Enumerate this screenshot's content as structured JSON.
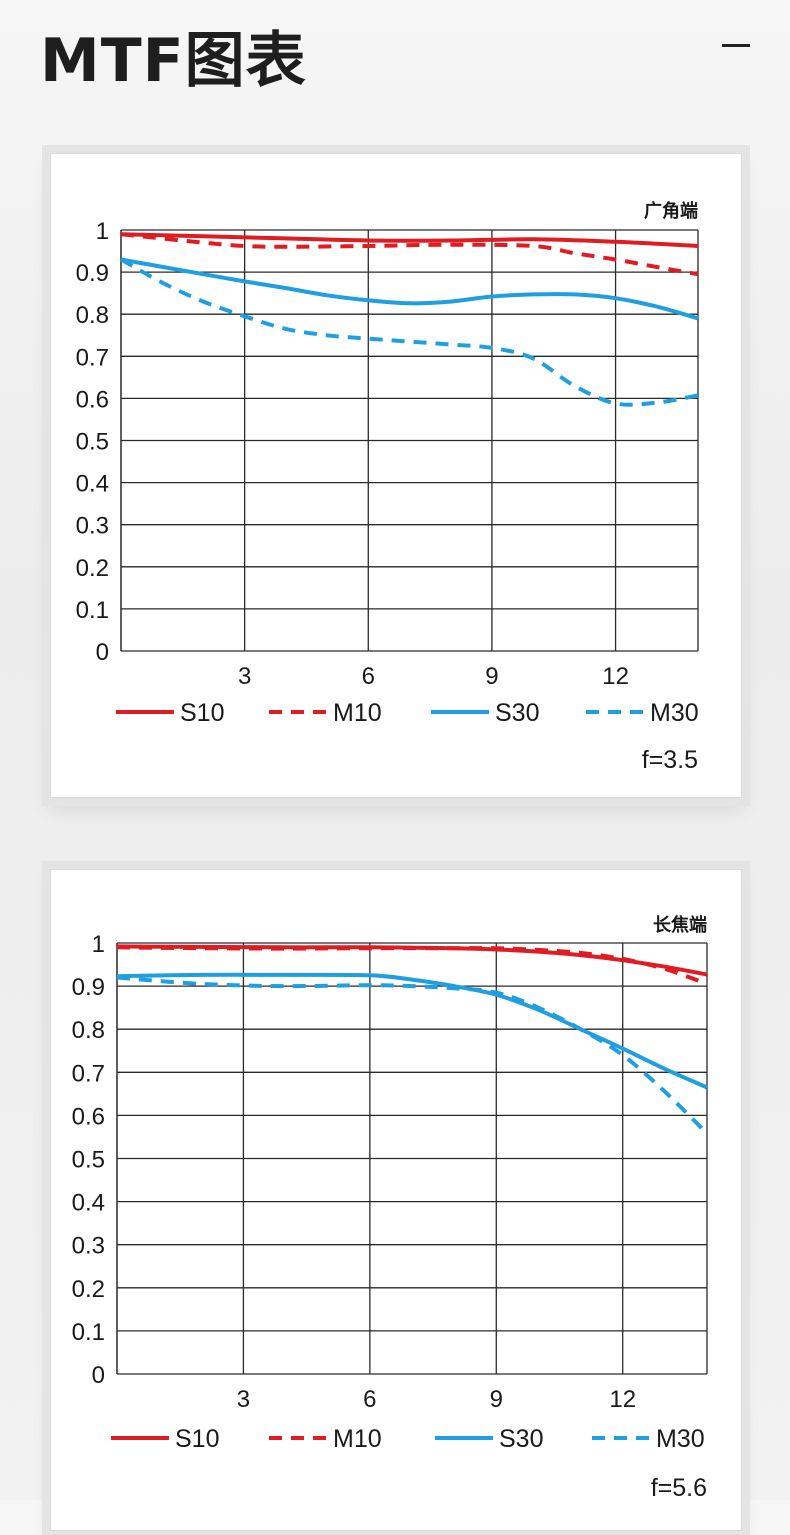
{
  "page": {
    "title": "MTF图表",
    "minimize_icon": "minimize-icon"
  },
  "colors": {
    "sagittal_10": "#e01b22",
    "meridional_10": "#e01b22",
    "sagittal_30": "#1f9fdf",
    "meridional_30": "#1f9fdf",
    "grid": "#2a2a2a",
    "text": "#1a1a1a"
  },
  "chart_data": [
    {
      "type": "line",
      "corner_label": "广角端",
      "aperture_label": "f=3.5",
      "xlim": [
        0,
        14
      ],
      "ylim": [
        0,
        1
      ],
      "x_ticks": [
        3,
        6,
        9,
        12
      ],
      "x_tick_labels": [
        "3",
        "6",
        "9",
        "12"
      ],
      "y_ticks": [
        0,
        0.1,
        0.2,
        0.3,
        0.4,
        0.5,
        0.6,
        0.7,
        0.8,
        0.9,
        1
      ],
      "y_tick_labels": [
        "0",
        "0.1",
        "0.2",
        "0.3",
        "0.4",
        "0.5",
        "0.6",
        "0.7",
        "0.8",
        "0.9",
        "1"
      ],
      "grid": true,
      "legend": "bottom",
      "series": [
        {
          "name": "S10",
          "color": "#e01b22",
          "dash": false,
          "x": [
            0,
            2,
            4,
            6,
            8,
            10,
            12,
            14
          ],
          "y": [
            0.99,
            0.985,
            0.98,
            0.975,
            0.975,
            0.978,
            0.972,
            0.962
          ]
        },
        {
          "name": "M10",
          "color": "#e01b22",
          "dash": true,
          "x": [
            0,
            2,
            3,
            4,
            6,
            8,
            10,
            11,
            12,
            13,
            14
          ],
          "y": [
            0.99,
            0.97,
            0.962,
            0.96,
            0.962,
            0.965,
            0.962,
            0.945,
            0.93,
            0.912,
            0.895
          ]
        },
        {
          "name": "S30",
          "color": "#1f9fdf",
          "dash": false,
          "x": [
            0,
            2,
            3,
            4,
            5,
            6,
            7,
            8,
            9,
            10,
            11,
            12,
            13,
            14
          ],
          "y": [
            0.93,
            0.895,
            0.878,
            0.862,
            0.845,
            0.833,
            0.826,
            0.83,
            0.842,
            0.847,
            0.847,
            0.838,
            0.818,
            0.79
          ]
        },
        {
          "name": "M30",
          "color": "#1f9fdf",
          "dash": true,
          "x": [
            0,
            1,
            2,
            3,
            4,
            5,
            6,
            7,
            8,
            9,
            10,
            11,
            12,
            13,
            14
          ],
          "y": [
            0.93,
            0.875,
            0.83,
            0.795,
            0.765,
            0.75,
            0.742,
            0.735,
            0.728,
            0.72,
            0.695,
            0.63,
            0.588,
            0.59,
            0.607
          ]
        }
      ]
    },
    {
      "type": "line",
      "corner_label": "长焦端",
      "aperture_label": "f=5.6",
      "xlim": [
        0,
        14
      ],
      "ylim": [
        0,
        1
      ],
      "x_ticks": [
        3,
        6,
        9,
        12
      ],
      "x_tick_labels": [
        "3",
        "6",
        "9",
        "12"
      ],
      "y_ticks": [
        0,
        0.1,
        0.2,
        0.3,
        0.4,
        0.5,
        0.6,
        0.7,
        0.8,
        0.9,
        1
      ],
      "y_tick_labels": [
        "0",
        "0.1",
        "0.2",
        "0.3",
        "0.4",
        "0.5",
        "0.6",
        "0.7",
        "0.8",
        "0.9",
        "1"
      ],
      "grid": true,
      "legend": "bottom",
      "series": [
        {
          "name": "S10",
          "color": "#e01b22",
          "dash": false,
          "x": [
            0,
            2,
            4,
            6,
            8,
            9,
            10,
            11,
            12,
            13,
            14
          ],
          "y": [
            0.992,
            0.991,
            0.99,
            0.99,
            0.988,
            0.985,
            0.98,
            0.972,
            0.96,
            0.945,
            0.927
          ]
        },
        {
          "name": "M10",
          "color": "#e01b22",
          "dash": true,
          "x": [
            0,
            2,
            4,
            6,
            8,
            9,
            10,
            11,
            12,
            13,
            14
          ],
          "y": [
            0.99,
            0.988,
            0.987,
            0.988,
            0.988,
            0.988,
            0.984,
            0.977,
            0.963,
            0.94,
            0.905
          ]
        },
        {
          "name": "S30",
          "color": "#1f9fdf",
          "dash": false,
          "x": [
            0,
            2,
            4,
            6,
            7,
            8,
            9,
            10,
            11,
            12,
            13,
            14
          ],
          "y": [
            0.923,
            0.926,
            0.926,
            0.925,
            0.915,
            0.9,
            0.88,
            0.845,
            0.8,
            0.755,
            0.708,
            0.665
          ]
        },
        {
          "name": "M30",
          "color": "#1f9fdf",
          "dash": true,
          "x": [
            0,
            2,
            4,
            6,
            7,
            8,
            9,
            10,
            11,
            12,
            13,
            14
          ],
          "y": [
            0.92,
            0.905,
            0.9,
            0.902,
            0.9,
            0.895,
            0.885,
            0.85,
            0.8,
            0.74,
            0.655,
            0.558
          ]
        }
      ]
    }
  ]
}
